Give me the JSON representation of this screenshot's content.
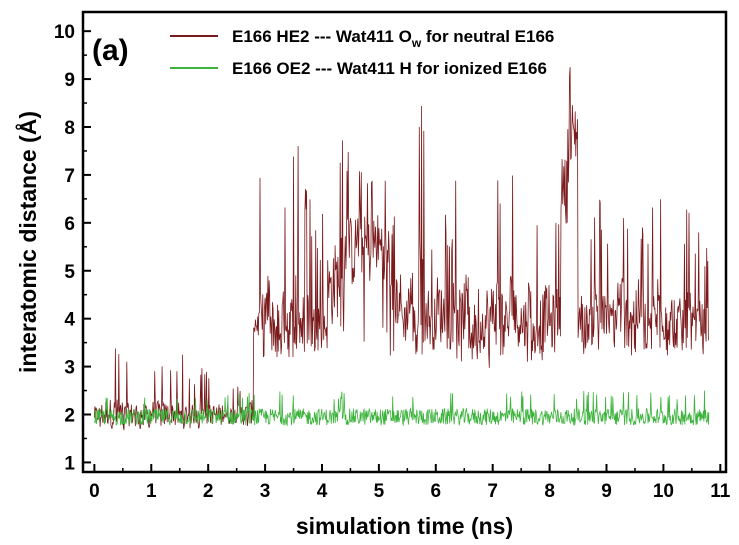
{
  "chart_data": {
    "type": "line",
    "panel_label": "(a)",
    "xlabel": "simulation time (ns)",
    "ylabel": "interatomic distance (Å)",
    "xlim": [
      -0.2,
      11.1
    ],
    "ylim": [
      0.8,
      10.4
    ],
    "xticks": [
      "0",
      "1",
      "2",
      "3",
      "4",
      "5",
      "6",
      "7",
      "8",
      "9",
      "10",
      "11"
    ],
    "yticks": [
      "1",
      "2",
      "3",
      "4",
      "5",
      "6",
      "7",
      "8",
      "9",
      "10"
    ],
    "grid": false,
    "legend_position": "top",
    "series": [
      {
        "name": "E166 HE2 --- Wat411 Ow for neutral E166",
        "legend_main": "E166 HE2 --- Wat411 O",
        "legend_sub": "w",
        "legend_tail": " for neutral E166",
        "color": "#7b1a1c",
        "x": [
          0,
          0.1,
          0.2,
          0.3,
          0.4,
          0.5,
          0.6,
          0.7,
          0.8,
          0.9,
          1.0,
          1.1,
          1.2,
          1.3,
          1.4,
          1.5,
          1.6,
          1.7,
          1.8,
          1.9,
          2.0,
          2.1,
          2.2,
          2.3,
          2.4,
          2.5,
          2.6,
          2.7,
          2.8,
          2.9,
          3.0,
          3.1,
          3.2,
          3.3,
          3.4,
          3.5,
          3.6,
          3.7,
          3.8,
          3.9,
          4.0,
          4.1,
          4.2,
          4.3,
          4.4,
          4.5,
          4.6,
          4.7,
          4.8,
          4.9,
          5.0,
          5.1,
          5.2,
          5.3,
          5.4,
          5.5,
          5.6,
          5.7,
          5.8,
          5.9,
          6.0,
          6.1,
          6.2,
          6.3,
          6.4,
          6.5,
          6.6,
          6.7,
          6.8,
          6.9,
          7.0,
          7.1,
          7.2,
          7.3,
          7.4,
          7.5,
          7.6,
          7.7,
          7.8,
          7.9,
          8.0,
          8.1,
          8.2,
          8.3,
          8.4,
          8.5,
          8.6,
          8.7,
          8.8,
          8.9,
          9.0,
          9.1,
          9.2,
          9.3,
          9.4,
          9.5,
          9.6,
          9.7,
          9.8,
          9.9,
          10.0,
          10.1,
          10.2,
          10.3,
          10.4,
          10.5,
          10.6,
          10.7,
          10.8
        ],
        "y_mean": [
          2.0,
          2.0,
          2.05,
          2.0,
          2.0,
          1.95,
          2.0,
          2.05,
          2.0,
          2.0,
          2.05,
          2.0,
          2.0,
          2.05,
          2.0,
          1.95,
          2.0,
          2.0,
          2.05,
          2.0,
          2.0,
          2.0,
          2.05,
          2.0,
          2.0,
          2.05,
          2.0,
          2.05,
          3.9,
          3.8,
          4.2,
          3.9,
          3.8,
          4.0,
          3.8,
          4.3,
          3.9,
          4.1,
          3.8,
          4.0,
          3.9,
          4.6,
          4.8,
          5.0,
          5.6,
          5.4,
          5.7,
          5.5,
          5.4,
          5.6,
          5.5,
          5.3,
          4.3,
          4.4,
          4.0,
          4.4,
          3.9,
          4.7,
          4.1,
          3.9,
          4.2,
          4.1,
          3.9,
          4.2,
          4.0,
          4.3,
          3.8,
          4.1,
          3.9,
          4.0,
          4.2,
          4.1,
          3.9,
          4.3,
          4.0,
          3.9,
          4.2,
          4.0,
          3.9,
          4.1,
          3.9,
          4.1,
          6.8,
          7.5,
          7.9,
          4.0,
          3.9,
          4.0,
          4.2,
          4.0,
          3.9,
          4.1,
          4.3,
          4.0,
          4.1,
          4.2,
          3.9,
          3.9,
          4.0,
          4.3,
          4.1,
          4.0,
          3.9,
          3.9,
          4.0,
          3.8,
          3.9,
          3.8,
          3.7
        ],
        "y_min": [
          1.7,
          1.7,
          1.7,
          1.7,
          1.7,
          1.65,
          1.7,
          1.7,
          1.7,
          1.7,
          1.7,
          1.7,
          1.7,
          1.7,
          1.7,
          1.7,
          1.7,
          1.7,
          1.7,
          1.7,
          1.7,
          1.7,
          1.7,
          1.7,
          1.7,
          1.7,
          1.7,
          1.7,
          3.2,
          3.2,
          3.3,
          3.2,
          3.2,
          3.2,
          3.2,
          3.2,
          3.2,
          3.2,
          3.2,
          3.2,
          3.2,
          3.2,
          3.3,
          3.5,
          4.0,
          3.5,
          4.0,
          3.5,
          3.5,
          4.0,
          3.6,
          3.4,
          3.2,
          3.2,
          3.2,
          3.2,
          3.2,
          3.2,
          3.1,
          3.0,
          3.1,
          3.1,
          3.0,
          3.1,
          3.1,
          3.2,
          3.0,
          3.1,
          3.0,
          2.7,
          3.0,
          3.1,
          3.0,
          3.1,
          3.1,
          3.0,
          3.1,
          3.1,
          3.1,
          3.2,
          3.1,
          3.2,
          5.8,
          6.0,
          6.0,
          3.3,
          3.2,
          3.2,
          3.2,
          3.2,
          3.2,
          3.2,
          3.2,
          3.2,
          3.2,
          3.2,
          3.2,
          3.2,
          3.2,
          3.2,
          3.2,
          3.2,
          3.2,
          3.2,
          3.2,
          3.2,
          3.2,
          3.2,
          3.2
        ],
        "y_max": [
          2.6,
          3.1,
          3.2,
          3.6,
          3.5,
          3.2,
          3.0,
          2.8,
          2.9,
          3.2,
          3.0,
          3.2,
          3.1,
          3.0,
          3.2,
          3.3,
          2.9,
          2.8,
          3.0,
          2.9,
          2.8,
          2.9,
          2.8,
          2.8,
          2.6,
          2.6,
          2.9,
          3.0,
          4.9,
          7.2,
          7.3,
          6.0,
          6.9,
          6.4,
          7.3,
          7.8,
          6.5,
          6.9,
          5.9,
          5.5,
          6.2,
          7.3,
          7.5,
          7.8,
          7.5,
          7.5,
          7.4,
          7.0,
          7.1,
          7.3,
          7.2,
          7.3,
          6.2,
          6.3,
          5.9,
          7.2,
          5.5,
          8.5,
          6.1,
          5.9,
          7.0,
          6.2,
          5.9,
          7.0,
          6.4,
          6.5,
          5.8,
          6.6,
          5.8,
          6.7,
          7.1,
          6.6,
          6.0,
          7.0,
          6.2,
          6.2,
          7.0,
          6.4,
          6.5,
          6.4,
          6.4,
          6.4,
          8.8,
          9.5,
          9.4,
          6.1,
          5.5,
          6.2,
          6.8,
          6.0,
          5.6,
          6.5,
          7.0,
          6.4,
          6.2,
          6.5,
          6.0,
          5.9,
          6.4,
          6.9,
          6.7,
          6.3,
          6.0,
          5.8,
          6.5,
          5.6,
          5.8,
          5.5,
          5.5
        ]
      },
      {
        "name": "E166 OE2 --- Wat411 H for ionized E166",
        "legend_main": "E166 OE2 --- Wat411 H for ionized E166",
        "color": "#3cb33c",
        "x_start": 0.0,
        "x_end": 10.8,
        "y_mean": 1.95,
        "y_min": 1.72,
        "y_max": 2.5
      }
    ]
  }
}
